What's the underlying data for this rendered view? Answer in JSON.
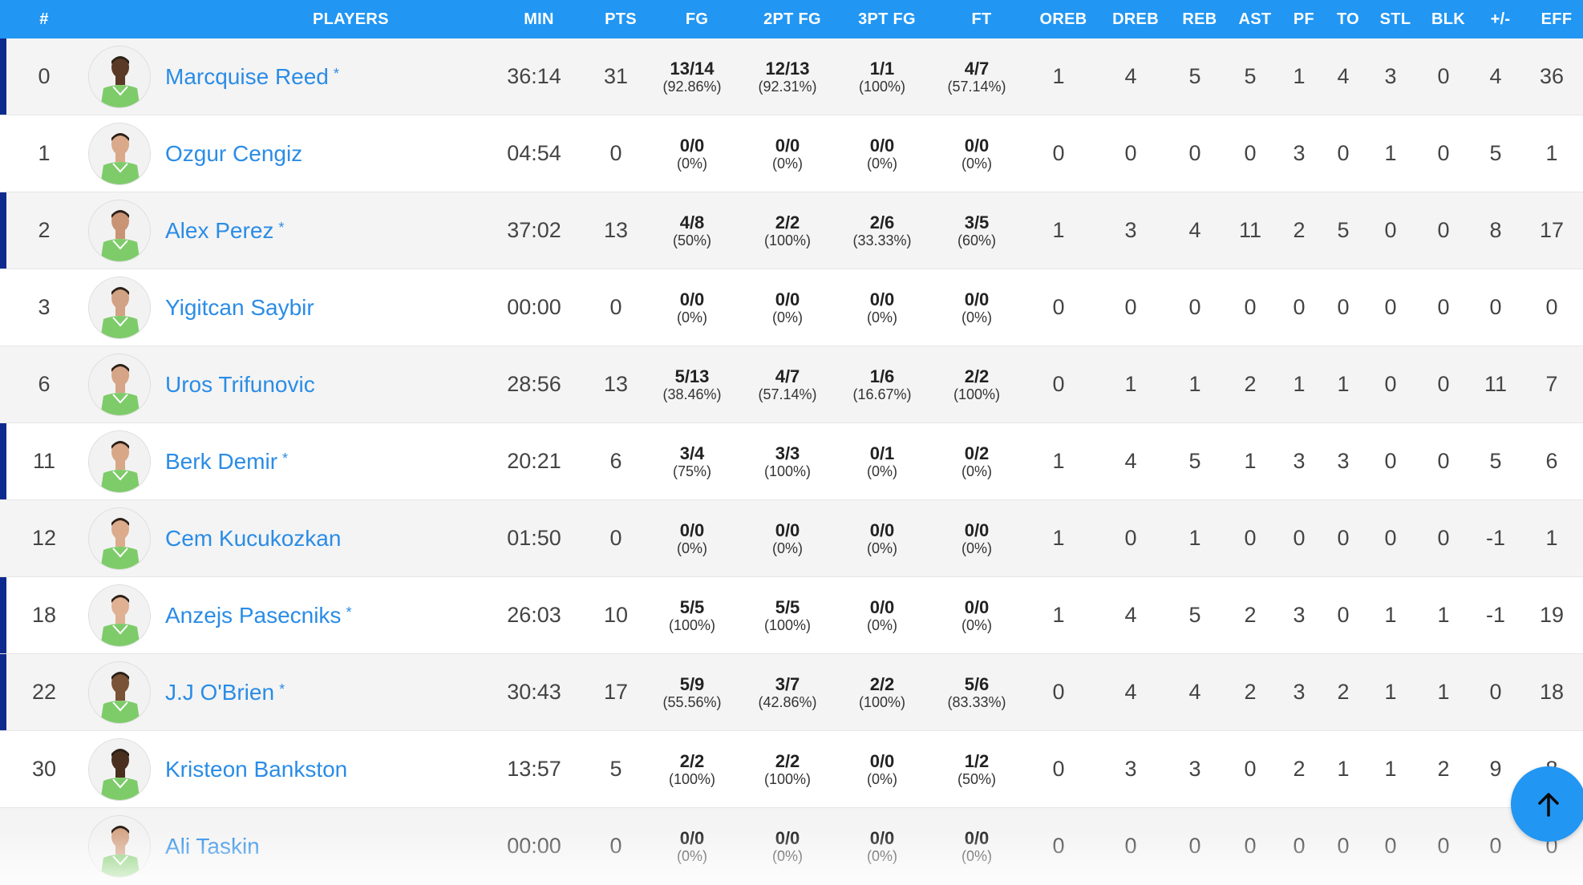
{
  "header": {
    "num": "#",
    "players": "PLAYERS",
    "min": "MIN",
    "pts": "PTS",
    "fg": "FG",
    "fg2": "2PT FG",
    "fg3": "3PT FG",
    "ft": "FT",
    "oreb": "OREB",
    "dreb": "DREB",
    "reb": "REB",
    "ast": "AST",
    "pf": "PF",
    "to": "TO",
    "stl": "STL",
    "blk": "BLK",
    "pm": "+/-",
    "eff": "EFF"
  },
  "starter_marker": "*",
  "colors": {
    "header_bg": "#2196f3",
    "link": "#2a8ce6",
    "starter_bar": "#0f2a8f",
    "jersey": "#7ecb6a"
  },
  "rows": [
    {
      "num": "0",
      "name": "Marcquise Reed",
      "starter": "*",
      "min": "36:14",
      "pts": "31",
      "fg": "13/14",
      "fg_pct": "(92.86%)",
      "fg2": "12/13",
      "fg2_pct": "(92.31%)",
      "fg3": "1/1",
      "fg3_pct": "(100%)",
      "ft": "4/7",
      "ft_pct": "(57.14%)",
      "oreb": "1",
      "dreb": "4",
      "reb": "5",
      "ast": "5",
      "pf": "1",
      "to": "4",
      "stl": "3",
      "blk": "0",
      "pm": "4",
      "eff": "36",
      "skin": "#5a3a26"
    },
    {
      "num": "1",
      "name": "Ozgur Cengiz",
      "starter": "",
      "min": "04:54",
      "pts": "0",
      "fg": "0/0",
      "fg_pct": "(0%)",
      "fg2": "0/0",
      "fg2_pct": "(0%)",
      "fg3": "0/0",
      "fg3_pct": "(0%)",
      "ft": "0/0",
      "ft_pct": "(0%)",
      "oreb": "0",
      "dreb": "0",
      "reb": "0",
      "ast": "0",
      "pf": "3",
      "to": "0",
      "stl": "1",
      "blk": "0",
      "pm": "5",
      "eff": "1",
      "skin": "#d9a98a"
    },
    {
      "num": "2",
      "name": "Alex Perez",
      "starter": "*",
      "min": "37:02",
      "pts": "13",
      "fg": "4/8",
      "fg_pct": "(50%)",
      "fg2": "2/2",
      "fg2_pct": "(100%)",
      "fg3": "2/6",
      "fg3_pct": "(33.33%)",
      "ft": "3/5",
      "ft_pct": "(60%)",
      "oreb": "1",
      "dreb": "3",
      "reb": "4",
      "ast": "11",
      "pf": "2",
      "to": "5",
      "stl": "0",
      "blk": "0",
      "pm": "8",
      "eff": "17",
      "skin": "#c99476"
    },
    {
      "num": "3",
      "name": "Yigitcan Saybir",
      "starter": "",
      "min": "00:00",
      "pts": "0",
      "fg": "0/0",
      "fg_pct": "(0%)",
      "fg2": "0/0",
      "fg2_pct": "(0%)",
      "fg3": "0/0",
      "fg3_pct": "(0%)",
      "ft": "0/0",
      "ft_pct": "(0%)",
      "oreb": "0",
      "dreb": "0",
      "reb": "0",
      "ast": "0",
      "pf": "0",
      "to": "0",
      "stl": "0",
      "blk": "0",
      "pm": "0",
      "eff": "0",
      "skin": "#d2a284"
    },
    {
      "num": "6",
      "name": "Uros Trifunovic",
      "starter": "",
      "min": "28:56",
      "pts": "13",
      "fg": "5/13",
      "fg_pct": "(38.46%)",
      "fg2": "4/7",
      "fg2_pct": "(57.14%)",
      "fg3": "1/6",
      "fg3_pct": "(16.67%)",
      "ft": "2/2",
      "ft_pct": "(100%)",
      "oreb": "0",
      "dreb": "1",
      "reb": "1",
      "ast": "2",
      "pf": "1",
      "to": "1",
      "stl": "0",
      "blk": "0",
      "pm": "11",
      "eff": "7",
      "skin": "#d6a487"
    },
    {
      "num": "11",
      "name": "Berk Demir",
      "starter": "*",
      "min": "20:21",
      "pts": "6",
      "fg": "3/4",
      "fg_pct": "(75%)",
      "fg2": "3/3",
      "fg2_pct": "(100%)",
      "fg3": "0/1",
      "fg3_pct": "(0%)",
      "ft": "0/2",
      "ft_pct": "(0%)",
      "oreb": "1",
      "dreb": "4",
      "reb": "5",
      "ast": "1",
      "pf": "3",
      "to": "3",
      "stl": "0",
      "blk": "0",
      "pm": "5",
      "eff": "6",
      "skin": "#d8a788"
    },
    {
      "num": "12",
      "name": "Cem Kucukozkan",
      "starter": "",
      "min": "01:50",
      "pts": "0",
      "fg": "0/0",
      "fg_pct": "(0%)",
      "fg2": "0/0",
      "fg2_pct": "(0%)",
      "fg3": "0/0",
      "fg3_pct": "(0%)",
      "ft": "0/0",
      "ft_pct": "(0%)",
      "oreb": "1",
      "dreb": "0",
      "reb": "1",
      "ast": "0",
      "pf": "0",
      "to": "0",
      "stl": "0",
      "blk": "0",
      "pm": "-1",
      "eff": "1",
      "skin": "#dbab8c"
    },
    {
      "num": "18",
      "name": "Anzejs Pasecniks",
      "starter": "*",
      "min": "26:03",
      "pts": "10",
      "fg": "5/5",
      "fg_pct": "(100%)",
      "fg2": "5/5",
      "fg2_pct": "(100%)",
      "fg3": "0/0",
      "fg3_pct": "(0%)",
      "ft": "0/0",
      "ft_pct": "(0%)",
      "oreb": "1",
      "dreb": "4",
      "reb": "5",
      "ast": "2",
      "pf": "3",
      "to": "0",
      "stl": "1",
      "blk": "1",
      "pm": "-1",
      "eff": "19",
      "skin": "#dfb092"
    },
    {
      "num": "22",
      "name": "J.J O'Brien",
      "starter": "*",
      "min": "30:43",
      "pts": "17",
      "fg": "5/9",
      "fg_pct": "(55.56%)",
      "fg2": "3/7",
      "fg2_pct": "(42.86%)",
      "fg3": "2/2",
      "fg3_pct": "(100%)",
      "ft": "5/6",
      "ft_pct": "(83.33%)",
      "oreb": "0",
      "dreb": "4",
      "reb": "4",
      "ast": "2",
      "pf": "3",
      "to": "2",
      "stl": "1",
      "blk": "1",
      "pm": "0",
      "eff": "18",
      "skin": "#7a5238"
    },
    {
      "num": "30",
      "name": "Kristeon Bankston",
      "starter": "",
      "min": "13:57",
      "pts": "5",
      "fg": "2/2",
      "fg_pct": "(100%)",
      "fg2": "2/2",
      "fg2_pct": "(100%)",
      "fg3": "0/0",
      "fg3_pct": "(0%)",
      "ft": "1/2",
      "ft_pct": "(50%)",
      "oreb": "0",
      "dreb": "3",
      "reb": "3",
      "ast": "0",
      "pf": "2",
      "to": "1",
      "stl": "1",
      "blk": "2",
      "pm": "9",
      "eff": "8",
      "skin": "#4a2f1f"
    },
    {
      "num": "",
      "name": "Ali Taskin",
      "starter": "",
      "min": "00:00",
      "pts": "0",
      "fg": "0/0",
      "fg_pct": "(0%)",
      "fg2": "0/0",
      "fg2_pct": "(0%)",
      "fg3": "0/0",
      "fg3_pct": "(0%)",
      "ft": "0/0",
      "ft_pct": "(0%)",
      "oreb": "0",
      "dreb": "0",
      "reb": "0",
      "ast": "0",
      "pf": "0",
      "to": "0",
      "stl": "0",
      "blk": "0",
      "pm": "0",
      "eff": "0",
      "skin": "#d4a385"
    }
  ],
  "scroll_top_icon": "arrow-up-icon"
}
